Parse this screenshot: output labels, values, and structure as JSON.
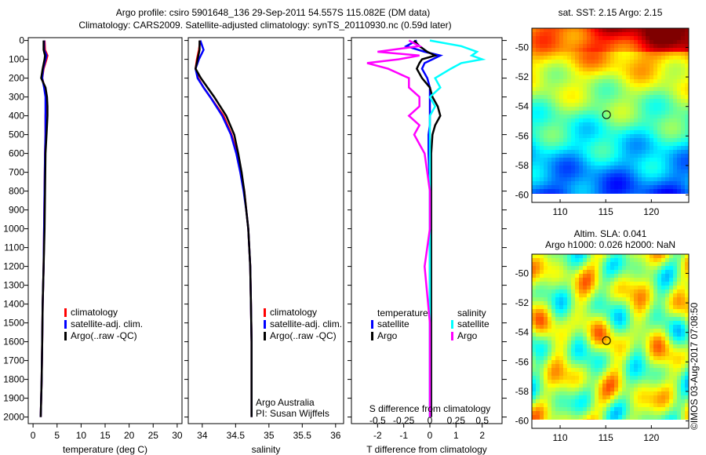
{
  "title": {
    "line1": "Argo profile: csiro 5901648_136 29-Sep-2011 54.557S 115.082E (DM data)",
    "line2": "Climatology: CARS2009. Satellite-adjusted climatology: synTS_20110930.nc (0.59d later)"
  },
  "credit": {
    "org": "Argo Australia",
    "pi": "PI: Susan Wijffels"
  },
  "timestamp": "©IMOS 03-Aug-2017 07:08:50",
  "colors": {
    "climatology": "#ff0000",
    "satellite": "#0000ff",
    "argo": "#000000",
    "sal_satellite": "#00ffff",
    "sal_argo": "#ff00ff"
  },
  "chart_data": [
    {
      "type": "line",
      "id": "temperature",
      "xlabel": "temperature (deg C)",
      "ylabel": "depth",
      "xlim": [
        -1,
        31
      ],
      "ylim": [
        2035,
        -15
      ],
      "xticks": [
        0,
        5,
        10,
        15,
        20,
        25,
        30
      ],
      "yticks": [
        0,
        100,
        200,
        300,
        400,
        500,
        600,
        700,
        800,
        900,
        1000,
        1100,
        1200,
        1300,
        1400,
        1500,
        1600,
        1700,
        1800,
        1900,
        2000
      ],
      "legend": [
        "climatology",
        "satellite-adj. clim.",
        "Argo(..raw -QC)"
      ],
      "depth": [
        0,
        50,
        80,
        100,
        150,
        200,
        250,
        300,
        350,
        400,
        500,
        600,
        800,
        1000,
        1200,
        1400,
        1600,
        1800,
        2000
      ],
      "series": [
        {
          "name": "climatology",
          "values": [
            2.4,
            2.5,
            3.0,
            2.8,
            2.2,
            1.9,
            2.4,
            2.7,
            2.7,
            2.6,
            2.6,
            2.5,
            2.4,
            2.3,
            2.2,
            2.0,
            1.9,
            1.8,
            1.6
          ]
        },
        {
          "name": "satellite-adj. clim.",
          "values": [
            2.3,
            2.3,
            2.8,
            2.6,
            2.1,
            1.9,
            2.3,
            2.6,
            2.6,
            2.6,
            2.6,
            2.5,
            2.4,
            2.3,
            2.2,
            2.0,
            1.9,
            1.8,
            1.6
          ]
        },
        {
          "name": "Argo(..raw -QC)",
          "values": [
            2.2,
            2.2,
            2.5,
            2.4,
            2.0,
            1.7,
            2.6,
            2.9,
            3.0,
            3.0,
            2.8,
            2.6,
            2.5,
            2.4,
            2.2,
            2.0,
            1.9,
            1.8,
            1.6
          ]
        }
      ]
    },
    {
      "type": "line",
      "id": "salinity",
      "xlabel": "salinity",
      "xlim": [
        33.79,
        36.12
      ],
      "ylim": [
        2035,
        -15
      ],
      "xticks": [
        34,
        34.5,
        35,
        35.5,
        36
      ],
      "legend": [
        "climatology",
        "satellite-adj. clim.",
        "Argo(..raw -QC)"
      ],
      "depth": [
        0,
        50,
        100,
        150,
        200,
        250,
        300,
        400,
        500,
        600,
        700,
        800,
        900,
        1000,
        1200,
        1400,
        1600,
        1800,
        2000
      ],
      "series": [
        {
          "name": "climatology",
          "values": [
            33.97,
            33.95,
            33.92,
            33.9,
            33.94,
            34.02,
            34.12,
            34.32,
            34.44,
            34.52,
            34.58,
            34.63,
            34.66,
            34.69,
            34.72,
            34.73,
            34.74,
            34.74,
            34.74
          ]
        },
        {
          "name": "satellite-adj. clim.",
          "values": [
            33.97,
            34.02,
            33.95,
            33.9,
            33.93,
            34.02,
            34.12,
            34.3,
            34.43,
            34.51,
            34.57,
            34.62,
            34.66,
            34.69,
            34.72,
            34.73,
            34.74,
            34.74,
            34.74
          ]
        },
        {
          "name": "Argo(..raw -QC)",
          "values": [
            33.96,
            33.96,
            33.93,
            33.9,
            33.98,
            34.08,
            34.18,
            34.36,
            34.48,
            34.54,
            34.59,
            34.63,
            34.66,
            34.69,
            34.72,
            34.73,
            34.74,
            34.74,
            34.74
          ]
        }
      ]
    },
    {
      "type": "line",
      "id": "difference",
      "xlabel": "T difference from climatology",
      "x2label": "S difference from climatology",
      "xlim": [
        -3,
        2.76
      ],
      "ylim": [
        2035,
        -15
      ],
      "xticks": [
        -2,
        -1,
        0,
        1,
        2
      ],
      "xtick_labels": [
        "-2",
        "-1",
        "0",
        "1",
        "2"
      ],
      "x2ticks": [
        -0.5,
        -0.25,
        0,
        0.25,
        0.5
      ],
      "x2tick_labels": [
        "-0.5",
        "-0.25",
        "0",
        "0.25",
        "0.5"
      ],
      "legend_titles": [
        "temperature",
        "salinity"
      ],
      "legend": [
        "satellite",
        "Argo",
        "satellite",
        "Argo"
      ],
      "depth": [
        0,
        30,
        60,
        80,
        100,
        120,
        150,
        200,
        250,
        300,
        350,
        400,
        450,
        500,
        600,
        800,
        1000,
        1200,
        1500,
        2000
      ],
      "series": [
        {
          "name": "T satellite",
          "values": [
            -0.5,
            -0.9,
            -0.2,
            0.4,
            0.1,
            -0.2,
            -0.3,
            -0.1,
            0,
            0,
            0,
            0,
            0,
            -0.05,
            -0.05,
            0,
            0,
            0,
            0,
            0
          ]
        },
        {
          "name": "T Argo",
          "values": [
            -0.6,
            -0.4,
            -0.1,
            0.2,
            -0.3,
            -0.4,
            -0.5,
            -0.3,
            0,
            0.1,
            0.3,
            0.4,
            0.2,
            0.1,
            0.05,
            0.05,
            0.05,
            0.05,
            0.05,
            0.05
          ]
        },
        {
          "name": "S satellite",
          "values": [
            0,
            0.3,
            0.45,
            0.4,
            0.5,
            0.3,
            0.2,
            0.05,
            0.1,
            0,
            0.05,
            0,
            0,
            0,
            0,
            0,
            0,
            0,
            0,
            0
          ]
        },
        {
          "name": "S Argo",
          "values": [
            -0.2,
            -0.1,
            -0.5,
            -0.1,
            -0.3,
            -0.6,
            -0.4,
            -0.2,
            -0.2,
            -0.1,
            -0.1,
            -0.2,
            -0.1,
            -0.15,
            -0.05,
            0,
            0,
            -0.05,
            0,
            0
          ]
        }
      ]
    },
    {
      "type": "heatmap",
      "id": "sst-map",
      "title": "sat. SST: 2.15 Argo: 2.15",
      "xlim": [
        106.9,
        124.1
      ],
      "ylim": [
        -60.5,
        -48.7
      ],
      "xticks": [
        110,
        115,
        120
      ],
      "yticks": [
        -50,
        -52,
        -54,
        -56,
        -58,
        -60
      ],
      "marker": {
        "lon": 115.082,
        "lat": -54.557
      }
    },
    {
      "type": "heatmap",
      "id": "sla-map",
      "title": "Altim. SLA: 0.041",
      "subtitle": "Argo h1000: 0.026 h2000: NaN",
      "xlim": [
        106.9,
        124.1
      ],
      "ylim": [
        -60.5,
        -48.7
      ],
      "xticks": [
        110,
        115,
        120
      ],
      "yticks": [
        -50,
        -52,
        -54,
        -56,
        -58,
        -60
      ],
      "marker": {
        "lon": 115.082,
        "lat": -54.557
      }
    }
  ]
}
